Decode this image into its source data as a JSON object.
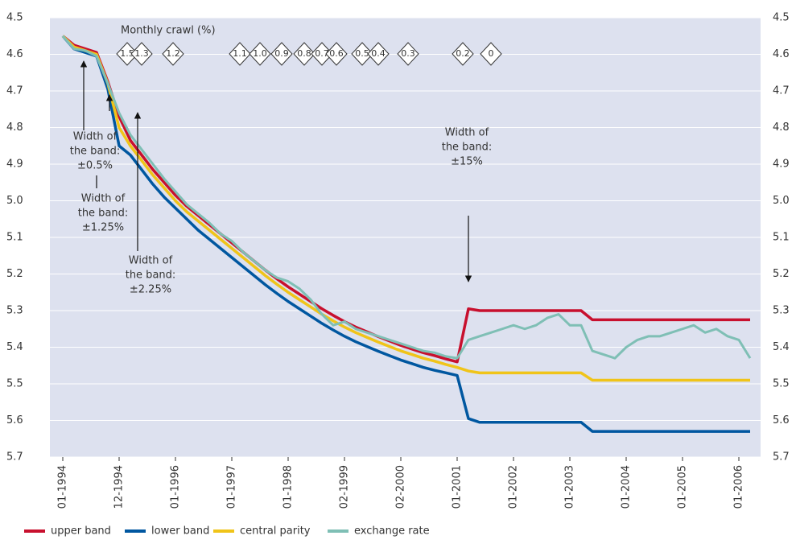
{
  "chart_data": {
    "type": "line",
    "categories": [
      "01-1994",
      null,
      null,
      null,
      null,
      "12-1994",
      null,
      null,
      null,
      null,
      "01-1996",
      null,
      null,
      null,
      null,
      "01-1997",
      null,
      null,
      null,
      null,
      "01-1998",
      null,
      null,
      null,
      null,
      "02-1999",
      null,
      null,
      null,
      null,
      "02-2000",
      null,
      null,
      null,
      null,
      "01-2001",
      null,
      null,
      null,
      null,
      "01-2002",
      null,
      null,
      null,
      null,
      "01-2003",
      null,
      null,
      null,
      null,
      "01-2004",
      null,
      null,
      null,
      null,
      "01-2005",
      null,
      null,
      null,
      null,
      "01-2006",
      null
    ],
    "series": [
      {
        "name": "upper band",
        "color": "#c8102e",
        "values": [
          4.55,
          4.575,
          4.585,
          4.595,
          4.675,
          4.77,
          4.835,
          4.875,
          4.915,
          4.95,
          4.985,
          5.015,
          5.04,
          5.065,
          5.09,
          5.115,
          5.14,
          5.165,
          5.19,
          5.213,
          5.235,
          5.255,
          5.275,
          5.295,
          5.313,
          5.33,
          5.345,
          5.358,
          5.371,
          5.383,
          5.395,
          5.405,
          5.415,
          5.423,
          5.432,
          5.44,
          5.295,
          5.3,
          5.3,
          5.3,
          5.3,
          5.3,
          5.3,
          5.3,
          5.3,
          5.3,
          5.3,
          5.325,
          5.325,
          5.325,
          5.325,
          5.325,
          5.325,
          5.325,
          5.325,
          5.325,
          5.325,
          5.325,
          5.325,
          5.325,
          5.325,
          5.325
        ]
      },
      {
        "name": "lower band",
        "color": "#0057a0",
        "values": [
          4.55,
          4.585,
          4.595,
          4.605,
          4.695,
          4.85,
          4.875,
          4.915,
          4.955,
          4.99,
          5.02,
          5.05,
          5.08,
          5.105,
          5.13,
          5.155,
          5.18,
          5.205,
          5.23,
          5.253,
          5.275,
          5.295,
          5.315,
          5.335,
          5.353,
          5.37,
          5.385,
          5.398,
          5.411,
          5.423,
          5.435,
          5.445,
          5.455,
          5.463,
          5.47,
          5.477,
          5.595,
          5.605,
          5.605,
          5.605,
          5.605,
          5.605,
          5.605,
          5.605,
          5.605,
          5.605,
          5.605,
          5.63,
          5.63,
          5.63,
          5.63,
          5.63,
          5.63,
          5.63,
          5.63,
          5.63,
          5.63,
          5.63,
          5.63,
          5.63,
          5.63,
          5.63
        ]
      },
      {
        "name": "central parity",
        "color": "#f0c419",
        "values": [
          4.55,
          4.58,
          4.59,
          4.6,
          4.68,
          4.8,
          4.85,
          4.89,
          4.93,
          4.965,
          5.0,
          5.03,
          5.055,
          5.08,
          5.105,
          5.13,
          5.155,
          5.18,
          5.205,
          5.228,
          5.25,
          5.27,
          5.29,
          5.31,
          5.328,
          5.345,
          5.36,
          5.373,
          5.386,
          5.398,
          5.41,
          5.42,
          5.43,
          5.438,
          5.447,
          5.455,
          5.465,
          5.47,
          5.47,
          5.47,
          5.47,
          5.47,
          5.47,
          5.47,
          5.47,
          5.47,
          5.47,
          5.49,
          5.49,
          5.49,
          5.49,
          5.49,
          5.49,
          5.49,
          5.49,
          5.49,
          5.49,
          5.49,
          5.49,
          5.49,
          5.49,
          5.49
        ]
      },
      {
        "name": "exchange rate",
        "color": "#7fbfb5",
        "values": [
          4.55,
          4.585,
          4.59,
          4.605,
          4.68,
          4.76,
          4.82,
          4.86,
          4.9,
          4.94,
          4.975,
          5.01,
          5.035,
          5.06,
          5.09,
          5.11,
          5.14,
          5.165,
          5.19,
          5.21,
          5.22,
          5.24,
          5.27,
          5.31,
          5.34,
          5.33,
          5.35,
          5.36,
          5.37,
          5.38,
          5.39,
          5.4,
          5.41,
          5.415,
          5.425,
          5.43,
          5.38,
          5.37,
          5.36,
          5.35,
          5.34,
          5.35,
          5.34,
          5.32,
          5.31,
          5.34,
          5.34,
          5.41,
          5.42,
          5.43,
          5.4,
          5.38,
          5.37,
          5.37,
          5.36,
          5.35,
          5.34,
          5.36,
          5.35,
          5.37,
          5.38,
          5.43
        ]
      }
    ],
    "ylim": [
      4.5,
      5.7
    ],
    "y_inverted": true,
    "yticks": [
      4.5,
      4.6,
      4.7,
      4.8,
      4.9,
      {
        "value": 5.0,
        "label": "5.0"
      },
      5.1,
      5.2,
      5.3,
      5.4,
      5.5,
      5.6,
      5.7
    ],
    "grid": true,
    "crawl_title": "Monthly crawl (%)",
    "crawl": [
      "1.5",
      "1.3",
      "1.2",
      "1.1",
      "1.0",
      "0.9",
      "0.8",
      "0.7",
      "0.6",
      "0.5",
      "0.4",
      "0.3",
      "0.2",
      "0"
    ],
    "band_notes": [
      [
        "Width of",
        "the band:",
        "±0.5%"
      ],
      [
        "Width of",
        "the band:",
        "±1.25%"
      ],
      [
        "Width of",
        "the band:",
        "±2.25%"
      ],
      [
        "Width of",
        "the band:",
        "±15%"
      ]
    ]
  }
}
